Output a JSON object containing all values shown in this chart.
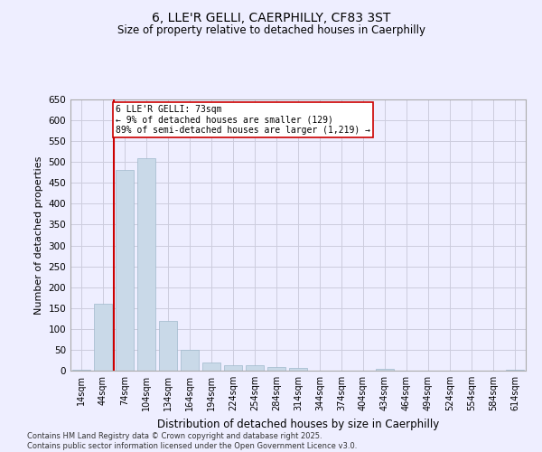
{
  "title": "6, LLE'R GELLI, CAERPHILLY, CF83 3ST",
  "subtitle": "Size of property relative to detached houses in Caerphilly",
  "xlabel": "Distribution of detached houses by size in Caerphilly",
  "ylabel": "Number of detached properties",
  "categories": [
    "14sqm",
    "44sqm",
    "74sqm",
    "104sqm",
    "134sqm",
    "164sqm",
    "194sqm",
    "224sqm",
    "254sqm",
    "284sqm",
    "314sqm",
    "344sqm",
    "374sqm",
    "404sqm",
    "434sqm",
    "464sqm",
    "494sqm",
    "524sqm",
    "554sqm",
    "584sqm",
    "614sqm"
  ],
  "values": [
    2,
    160,
    480,
    510,
    120,
    50,
    20,
    12,
    12,
    8,
    6,
    0,
    0,
    0,
    4,
    0,
    0,
    0,
    0,
    0,
    2
  ],
  "bar_color": "#c9d9e8",
  "bar_edge_color": "#a0b8cc",
  "vline_color": "#cc0000",
  "annotation_text": "6 LLE'R GELLI: 73sqm\n← 9% of detached houses are smaller (129)\n89% of semi-detached houses are larger (1,219) →",
  "annotation_box_color": "#ffffff",
  "annotation_box_edge": "#cc0000",
  "ylim": [
    0,
    650
  ],
  "yticks": [
    0,
    50,
    100,
    150,
    200,
    250,
    300,
    350,
    400,
    450,
    500,
    550,
    600,
    650
  ],
  "footer_line1": "Contains HM Land Registry data © Crown copyright and database right 2025.",
  "footer_line2": "Contains public sector information licensed under the Open Government Licence v3.0.",
  "background_color": "#eeeeff",
  "grid_color": "#ccccdd"
}
